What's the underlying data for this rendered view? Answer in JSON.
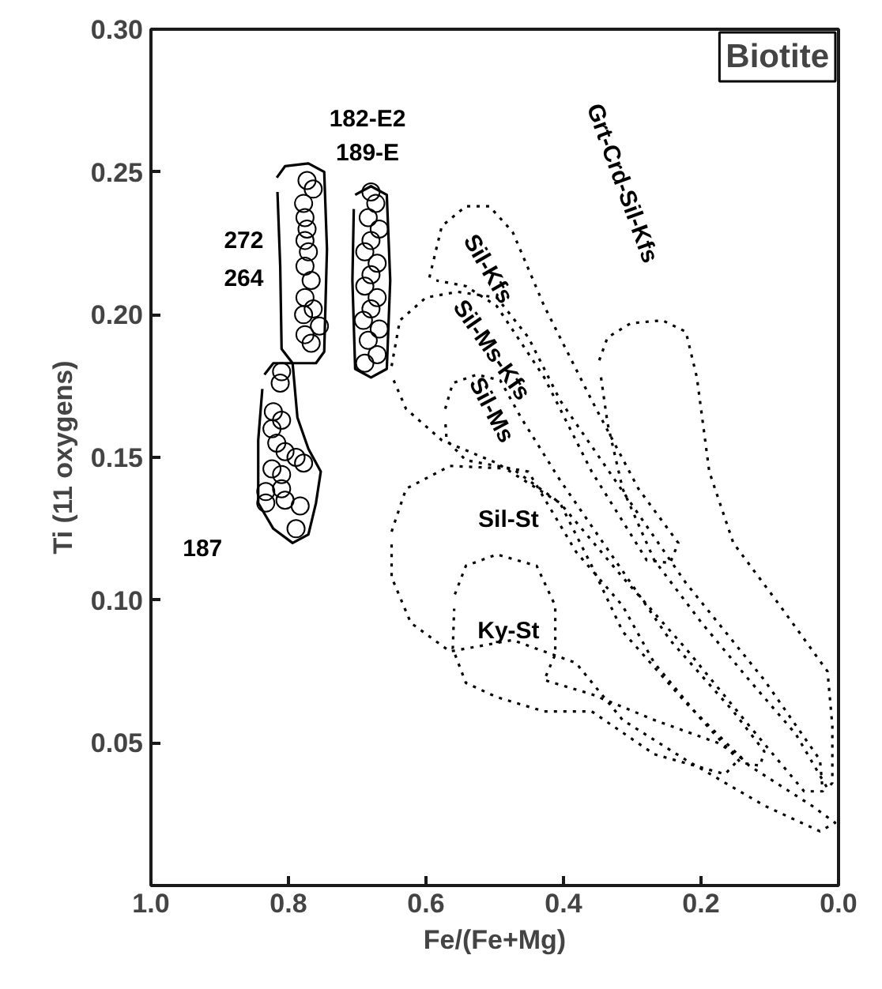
{
  "chart_data": {
    "type": "scatter",
    "xlabel": "Fe/(Fe+Mg)",
    "ylabel": "Ti (11 oxygens)",
    "xlim": [
      1.0,
      0.0
    ],
    "ylim": [
      0.0,
      0.3
    ],
    "xticks": [
      {
        "value": 1.0,
        "label": "1.0"
      },
      {
        "value": 0.8,
        "label": "0.8"
      },
      {
        "value": 0.6,
        "label": "0.6"
      },
      {
        "value": 0.4,
        "label": "0.4"
      },
      {
        "value": 0.2,
        "label": "0.2"
      },
      {
        "value": 0.0,
        "label": "0.0"
      }
    ],
    "yticks": [
      0.05,
      {
        "value": 0.1,
        "label": "0.10"
      },
      0.15,
      {
        "value": 0.2,
        "label": "0.20"
      },
      0.25,
      {
        "value": 0.3,
        "label": "0.30"
      }
    ],
    "marker": "circle",
    "series": [
      {
        "color": "#000000",
        "x": [
          0.773,
          0.764,
          0.778,
          0.776,
          0.773,
          0.776,
          0.771,
          0.776,
          0.767,
          0.776,
          0.764,
          0.778,
          0.755,
          0.776,
          0.767
        ],
        "values": [
          0.247,
          0.244,
          0.239,
          0.234,
          0.23,
          0.226,
          0.222,
          0.217,
          0.212,
          0.206,
          0.202,
          0.2,
          0.196,
          0.193,
          0.19
        ]
      },
      {
        "color": "#000000",
        "x": [
          0.68,
          0.673,
          0.684,
          0.668,
          0.68,
          0.689,
          0.671,
          0.68,
          0.689,
          0.671,
          0.68,
          0.691,
          0.668,
          0.684,
          0.671,
          0.689
        ],
        "values": [
          0.243,
          0.239,
          0.234,
          0.23,
          0.226,
          0.222,
          0.218,
          0.214,
          0.21,
          0.206,
          0.202,
          0.198,
          0.195,
          0.191,
          0.186,
          0.183
        ]
      },
      {
        "color": "#000000",
        "x": [
          0.81,
          0.812,
          0.822,
          0.81,
          0.824,
          0.817,
          0.805,
          0.789,
          0.778,
          0.824,
          0.81,
          0.833,
          0.81,
          0.805,
          0.833,
          0.783,
          0.789
        ],
        "values": [
          0.18,
          0.176,
          0.166,
          0.163,
          0.16,
          0.155,
          0.152,
          0.15,
          0.148,
          0.146,
          0.144,
          0.138,
          0.139,
          0.135,
          0.134,
          0.133,
          0.125
        ]
      },
      {
        "type": "line",
        "line_style": "solid",
        "marker": "none",
        "color": "#000000",
        "x": [
          0.817,
          0.805,
          0.771,
          0.748,
          0.744,
          0.748,
          0.76,
          0.794,
          0.81,
          0.812,
          0.816
        ],
        "values": [
          0.248,
          0.252,
          0.253,
          0.25,
          0.223,
          0.187,
          0.183,
          0.183,
          0.188,
          0.217,
          0.243
        ]
      },
      {
        "type": "line",
        "line_style": "solid",
        "marker": "none",
        "color": "#000000",
        "x": [
          0.703,
          0.68,
          0.657,
          0.652,
          0.657,
          0.68,
          0.703,
          0.707,
          0.705
        ],
        "values": [
          0.242,
          0.245,
          0.242,
          0.212,
          0.181,
          0.178,
          0.181,
          0.212,
          0.237
        ]
      },
      {
        "type": "line",
        "line_style": "solid",
        "marker": "none",
        "color": "#000000",
        "x": [
          0.835,
          0.822,
          0.794,
          0.787,
          0.771,
          0.753,
          0.76,
          0.771,
          0.794,
          0.822,
          0.844,
          0.844,
          0.838
        ],
        "values": [
          0.179,
          0.183,
          0.183,
          0.164,
          0.153,
          0.145,
          0.134,
          0.123,
          0.12,
          0.125,
          0.134,
          0.156,
          0.174
        ]
      },
      {
        "type": "line",
        "line_style": "dotted",
        "marker": "none",
        "color": "#000000",
        "x": [
          0.595,
          0.577,
          0.542,
          0.508,
          0.474,
          0.428,
          0.359,
          0.291,
          0.233,
          0.245,
          0.279,
          0.302,
          0.359,
          0.428,
          0.497,
          0.542,
          0.585
        ],
        "values": [
          0.213,
          0.231,
          0.238,
          0.238,
          0.229,
          0.203,
          0.17,
          0.139,
          0.12,
          0.113,
          0.114,
          0.123,
          0.145,
          0.178,
          0.203,
          0.21,
          0.212
        ]
      },
      {
        "type": "line",
        "line_style": "dotted",
        "marker": "none",
        "color": "#000000",
        "x": [
          0.348,
          0.336,
          0.302,
          0.256,
          0.222,
          0.206,
          0.188,
          0.153,
          0.085,
          0.016,
          0.009,
          0.009,
          0.016,
          0.062,
          0.13,
          0.199,
          0.268,
          0.314,
          0.336,
          0.346
        ],
        "values": [
          0.184,
          0.192,
          0.197,
          0.198,
          0.194,
          0.178,
          0.145,
          0.12,
          0.098,
          0.075,
          0.056,
          0.036,
          0.034,
          0.053,
          0.072,
          0.092,
          0.114,
          0.139,
          0.162,
          0.179
        ]
      },
      {
        "type": "line",
        "line_style": "dotted",
        "marker": "none",
        "color": "#000000",
        "x": [
          0.65,
          0.638,
          0.6,
          0.554,
          0.497,
          0.451,
          0.405,
          0.325,
          0.222,
          0.108,
          0.027,
          0.023,
          0.05,
          0.13,
          0.222,
          0.314,
          0.405,
          0.497,
          0.577,
          0.629,
          0.647
        ],
        "values": [
          0.182,
          0.198,
          0.206,
          0.208,
          0.206,
          0.192,
          0.17,
          0.142,
          0.106,
          0.072,
          0.044,
          0.033,
          0.033,
          0.056,
          0.083,
          0.108,
          0.134,
          0.148,
          0.156,
          0.167,
          0.177
        ]
      },
      {
        "type": "line",
        "line_style": "dotted",
        "marker": "none",
        "color": "#000000",
        "x": [
          0.572,
          0.561,
          0.526,
          0.492,
          0.462,
          0.405,
          0.325,
          0.245,
          0.153,
          0.108,
          0.114,
          0.142,
          0.199,
          0.268,
          0.314,
          0.382,
          0.451,
          0.542,
          0.57,
          0.572
        ],
        "values": [
          0.167,
          0.176,
          0.179,
          0.177,
          0.164,
          0.142,
          0.114,
          0.086,
          0.061,
          0.047,
          0.042,
          0.043,
          0.058,
          0.078,
          0.098,
          0.117,
          0.145,
          0.149,
          0.156,
          0.163
        ]
      },
      {
        "type": "line",
        "line_style": "dotted",
        "marker": "none",
        "color": "#000000",
        "x": [
          0.65,
          0.629,
          0.565,
          0.474,
          0.405,
          0.359,
          0.314,
          0.222,
          0.13,
          0.039,
          0.005,
          0.027,
          0.108,
          0.222,
          0.314,
          0.382,
          0.474,
          0.565,
          0.622,
          0.65,
          0.65
        ],
        "values": [
          0.124,
          0.139,
          0.147,
          0.146,
          0.134,
          0.112,
          0.089,
          0.064,
          0.042,
          0.028,
          0.022,
          0.019,
          0.028,
          0.044,
          0.058,
          0.078,
          0.086,
          0.082,
          0.092,
          0.108,
          0.12
        ]
      },
      {
        "type": "line",
        "line_style": "dotted",
        "marker": "none",
        "color": "#000000",
        "x": [
          0.558,
          0.542,
          0.497,
          0.439,
          0.412,
          0.412,
          0.428,
          0.359,
          0.268,
          0.176,
          0.142,
          0.165,
          0.268,
          0.359,
          0.428,
          0.497,
          0.542,
          0.561,
          0.559
        ],
        "values": [
          0.102,
          0.112,
          0.116,
          0.112,
          0.098,
          0.081,
          0.072,
          0.067,
          0.058,
          0.05,
          0.045,
          0.039,
          0.046,
          0.061,
          0.061,
          0.066,
          0.071,
          0.083,
          0.097
        ]
      }
    ],
    "annotations": [
      "Biotite",
      "182-E2",
      "189-E",
      "272",
      "264",
      "187",
      "Grt-Crd-Sil-Kfs",
      "Sil-Kfs",
      "Sil-Ms-Kfs",
      "Sil-Ms",
      "Sil-St",
      "Ky-St"
    ]
  }
}
